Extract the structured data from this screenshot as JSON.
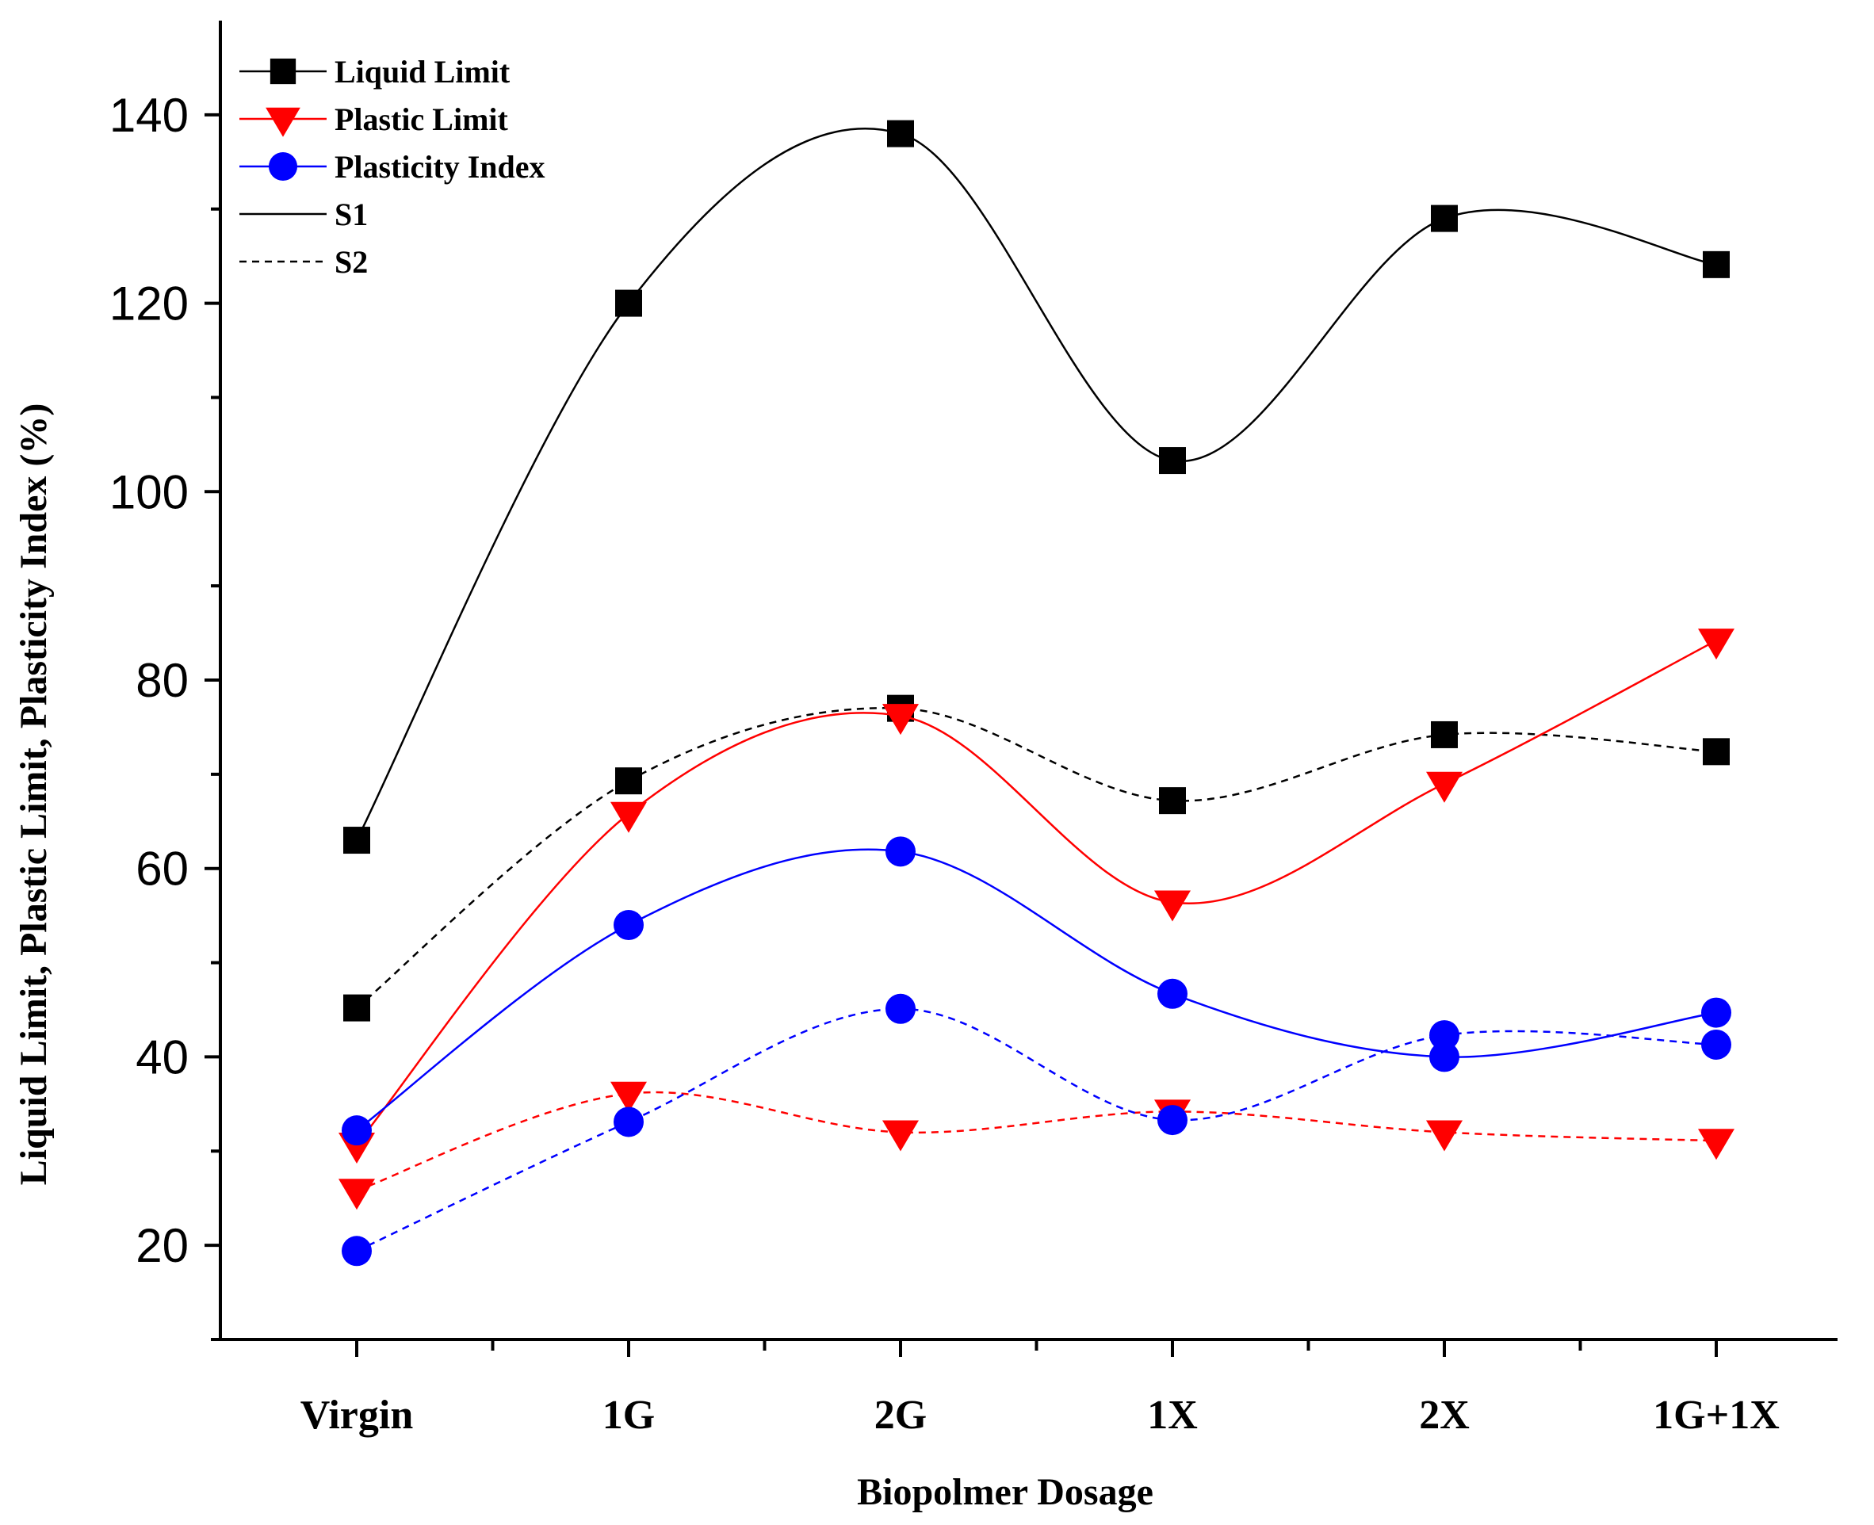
{
  "chart_data": {
    "type": "line",
    "title": "",
    "xlabel": "Biopolmer Dosage",
    "ylabel": "Liquid Limit, Plastic Limit, Plasticity Index (%)",
    "categories": [
      "Virgin",
      "1G",
      "2G",
      "1X",
      "2X",
      "1G+1X"
    ],
    "ylim": [
      10,
      150
    ],
    "yticks": [
      20,
      40,
      60,
      80,
      100,
      120,
      140
    ],
    "grid": false,
    "legend_position": "top-left",
    "legend": [
      {
        "label": "Liquid Limit",
        "kind": "marker",
        "marker": "square",
        "color": "#000000"
      },
      {
        "label": "Plastic Limit",
        "kind": "marker",
        "marker": "triangle-down",
        "color": "#ff0000"
      },
      {
        "label": "Plasticity Index",
        "kind": "marker",
        "marker": "circle",
        "color": "#0000ff"
      },
      {
        "label": "S1",
        "kind": "line",
        "dash": "solid",
        "color": "#000000"
      },
      {
        "label": "S2",
        "kind": "line",
        "dash": "dashed",
        "color": "#000000"
      }
    ],
    "series": [
      {
        "name": "Liquid Limit S1",
        "property": "Liquid Limit",
        "sample": "S1",
        "marker": "square",
        "color": "#000000",
        "dash": "solid",
        "values": [
          63.0,
          120.0,
          138.0,
          103.3,
          129.0,
          124.1
        ]
      },
      {
        "name": "Liquid Limit S2",
        "property": "Liquid Limit",
        "sample": "S2",
        "marker": "square",
        "color": "#000000",
        "dash": "dashed",
        "values": [
          45.2,
          69.3,
          77.0,
          67.2,
          74.2,
          72.4
        ]
      },
      {
        "name": "Plastic Limit S1",
        "property": "Plastic Limit",
        "sample": "S1",
        "marker": "triangle-down",
        "color": "#ff0000",
        "dash": "solid",
        "values": [
          30.7,
          65.8,
          76.2,
          56.4,
          69.0,
          84.2
        ]
      },
      {
        "name": "Plastic Limit S2",
        "property": "Plastic Limit",
        "sample": "S2",
        "marker": "triangle-down",
        "color": "#ff0000",
        "dash": "dashed",
        "values": [
          25.8,
          36.1,
          32.0,
          34.2,
          32.0,
          31.1
        ]
      },
      {
        "name": "Plasticity Index S1",
        "property": "Plasticity Index",
        "sample": "S1",
        "marker": "circle",
        "color": "#0000ff",
        "dash": "solid",
        "values": [
          32.2,
          54.0,
          61.8,
          46.7,
          40.0,
          44.7
        ]
      },
      {
        "name": "Plasticity Index S2",
        "property": "Plasticity Index",
        "sample": "S2",
        "marker": "circle",
        "color": "#0000ff",
        "dash": "dashed",
        "values": [
          19.4,
          33.1,
          45.1,
          33.3,
          42.3,
          41.3
        ]
      }
    ]
  }
}
